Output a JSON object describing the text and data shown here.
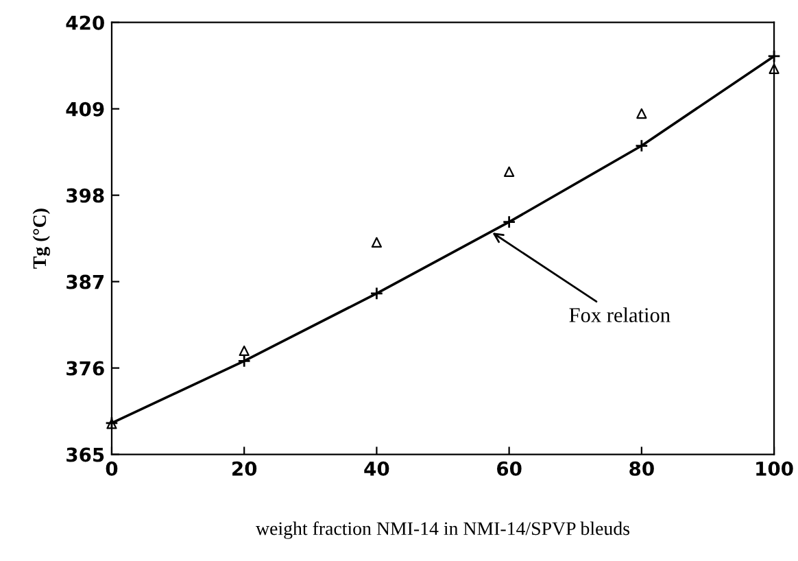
{
  "chart_data": {
    "type": "scatter",
    "xlabel": "weight fraction NMI-14 in NMI-14/SPVP bleuds",
    "ylabel": "Tg (°C)",
    "x": [
      0,
      20,
      40,
      60,
      80,
      100
    ],
    "series": [
      {
        "color": "#000000",
        "marker": "triangle",
        "values": [
          368.9,
          378.2,
          392.0,
          401.0,
          408.4,
          414.1
        ]
      },
      {
        "type": "line",
        "color": "#000000",
        "marker": "cross",
        "line_style": "solid",
        "values": [
          369.0,
          376.9,
          385.5,
          394.6,
          404.3,
          415.7
        ]
      }
    ],
    "annotations": [
      {
        "text": "Fox relation",
        "x": 57,
        "y": 393.5
      }
    ],
    "xlim": [
      0,
      100
    ],
    "xticks": [
      0,
      20,
      40,
      60,
      80,
      100
    ],
    "ylim": [
      365,
      420
    ],
    "yticks": [
      365,
      376,
      387,
      398,
      409,
      420
    ],
    "grid": false,
    "legend": false
  }
}
